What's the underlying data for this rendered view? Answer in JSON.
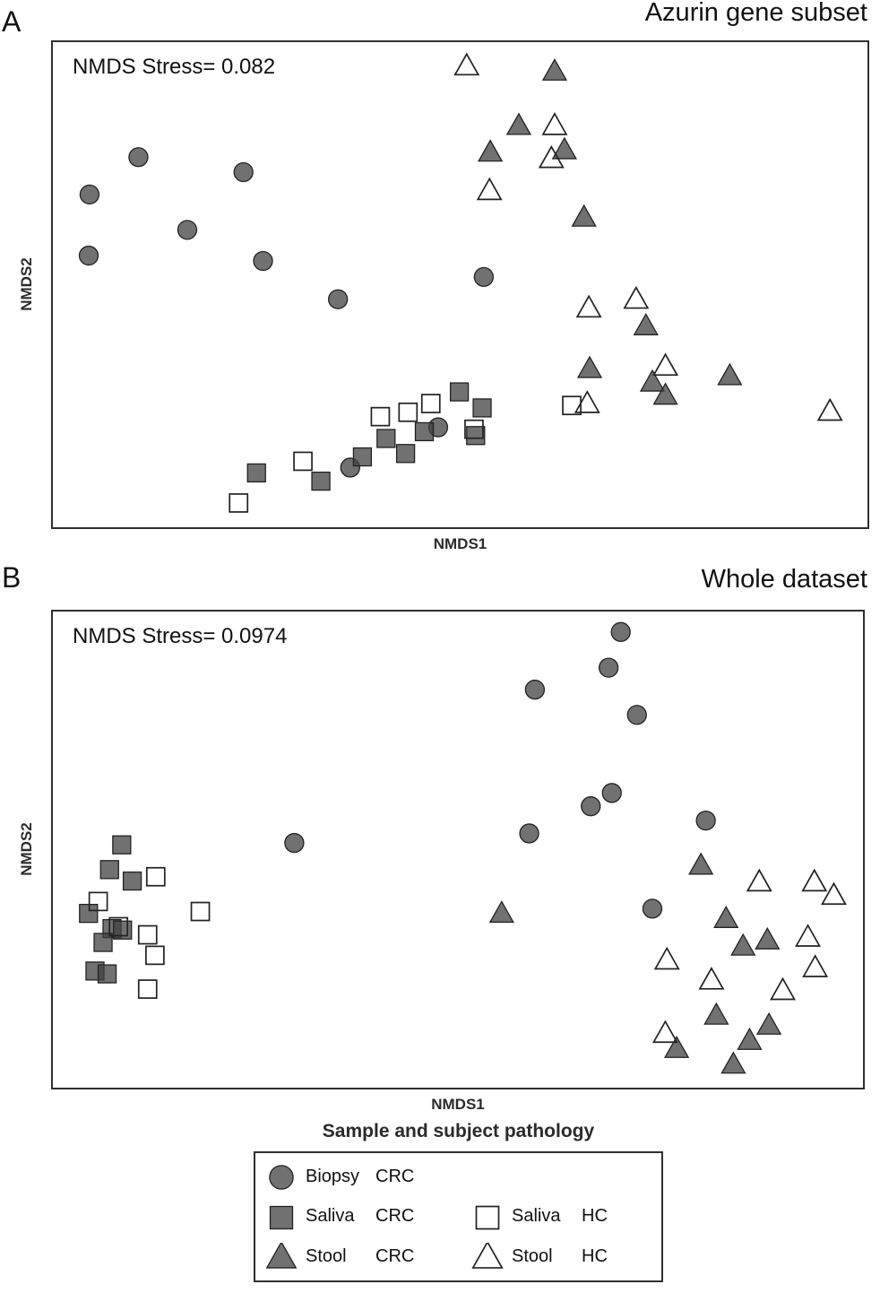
{
  "colors": {
    "filled_fill": "#414141",
    "filled_opacity": 0.75,
    "filled_stroke": "#222222",
    "open_fill": "none",
    "open_stroke": "#222222",
    "box_border": "#2f2f2f"
  },
  "chart_data": [
    {
      "type": "scatter",
      "panel_letter": "A",
      "title": "Azurin gene subset",
      "stress_label": "NMDS Stress= 0.082",
      "xlabel": "NMDS1",
      "ylabel": "NMDS2",
      "axis_ticks": "none",
      "coords": "normalized [x,y] fractions of plot box, origin top-left",
      "series": [
        {
          "name": "Biopsy CRC",
          "marker": "circle",
          "variant": "filled",
          "points": [
            [
              0.045,
              0.314
            ],
            [
              0.105,
              0.237
            ],
            [
              0.044,
              0.44
            ],
            [
              0.165,
              0.387
            ],
            [
              0.234,
              0.268
            ],
            [
              0.258,
              0.451
            ],
            [
              0.35,
              0.53
            ],
            [
              0.529,
              0.484
            ],
            [
              0.365,
              0.877
            ],
            [
              0.473,
              0.794
            ]
          ]
        },
        {
          "name": "Saliva CRC",
          "marker": "square",
          "variant": "filled",
          "points": [
            [
              0.25,
              0.888
            ],
            [
              0.329,
              0.905
            ],
            [
              0.38,
              0.855
            ],
            [
              0.409,
              0.817
            ],
            [
              0.433,
              0.848
            ],
            [
              0.456,
              0.803
            ],
            [
              0.499,
              0.721
            ],
            [
              0.527,
              0.754
            ],
            [
              0.519,
              0.811
            ]
          ]
        },
        {
          "name": "Stool CRC",
          "marker": "triangle",
          "variant": "filled",
          "points": [
            [
              0.616,
              0.062
            ],
            [
              0.572,
              0.174
            ],
            [
              0.537,
              0.229
            ],
            [
              0.628,
              0.224
            ],
            [
              0.652,
              0.363
            ],
            [
              0.728,
              0.587
            ],
            [
              0.659,
              0.675
            ],
            [
              0.736,
              0.703
            ],
            [
              0.752,
              0.73
            ],
            [
              0.831,
              0.69
            ]
          ]
        },
        {
          "name": "Saliva HC",
          "marker": "square",
          "variant": "open",
          "points": [
            [
              0.228,
              0.95
            ],
            [
              0.307,
              0.864
            ],
            [
              0.402,
              0.772
            ],
            [
              0.436,
              0.763
            ],
            [
              0.464,
              0.745
            ],
            [
              0.517,
              0.798
            ],
            [
              0.637,
              0.749
            ]
          ]
        },
        {
          "name": "Stool HC",
          "marker": "triangle",
          "variant": "open",
          "points": [
            [
              0.508,
              0.051
            ],
            [
              0.616,
              0.174
            ],
            [
              0.612,
              0.242
            ],
            [
              0.536,
              0.308
            ],
            [
              0.658,
              0.55
            ],
            [
              0.716,
              0.532
            ],
            [
              0.752,
              0.67
            ],
            [
              0.656,
              0.747
            ],
            [
              0.954,
              0.763
            ]
          ]
        }
      ]
    },
    {
      "type": "scatter",
      "panel_letter": "B",
      "title": "Whole dataset",
      "stress_label": "NMDS Stress= 0.0974",
      "xlabel": "NMDS1",
      "ylabel": "NMDS2",
      "axis_ticks": "none",
      "coords": "normalized [x,y] fractions of plot box, origin top-left",
      "series": [
        {
          "name": "Biopsy CRC",
          "marker": "circle",
          "variant": "filled",
          "points": [
            [
              0.701,
              0.043
            ],
            [
              0.686,
              0.118
            ],
            [
              0.595,
              0.164
            ],
            [
              0.721,
              0.217
            ],
            [
              0.69,
              0.381
            ],
            [
              0.664,
              0.409
            ],
            [
              0.588,
              0.466
            ],
            [
              0.806,
              0.439
            ],
            [
              0.298,
              0.486
            ],
            [
              0.74,
              0.624
            ]
          ]
        },
        {
          "name": "Saliva CRC",
          "marker": "square",
          "variant": "filled",
          "points": [
            [
              0.085,
              0.49
            ],
            [
              0.07,
              0.542
            ],
            [
              0.098,
              0.566
            ],
            [
              0.044,
              0.634
            ],
            [
              0.073,
              0.666
            ],
            [
              0.086,
              0.669
            ],
            [
              0.062,
              0.695
            ],
            [
              0.052,
              0.755
            ],
            [
              0.067,
              0.761
            ]
          ]
        },
        {
          "name": "Stool CRC",
          "marker": "triangle",
          "variant": "filled",
          "points": [
            [
              0.8,
              0.535
            ],
            [
              0.554,
              0.636
            ],
            [
              0.831,
              0.647
            ],
            [
              0.852,
              0.705
            ],
            [
              0.882,
              0.692
            ],
            [
              0.819,
              0.85
            ],
            [
              0.884,
              0.871
            ],
            [
              0.86,
              0.903
            ],
            [
              0.77,
              0.92
            ],
            [
              0.84,
              0.953
            ]
          ]
        },
        {
          "name": "Saliva HC",
          "marker": "square",
          "variant": "open",
          "points": [
            [
              0.127,
              0.557
            ],
            [
              0.056,
              0.609
            ],
            [
              0.182,
              0.63
            ],
            [
              0.081,
              0.662
            ],
            [
              0.117,
              0.679
            ],
            [
              0.126,
              0.722
            ],
            [
              0.117,
              0.793
            ]
          ]
        },
        {
          "name": "Stool HC",
          "marker": "triangle",
          "variant": "open",
          "points": [
            [
              0.872,
              0.57
            ],
            [
              0.94,
              0.57
            ],
            [
              0.964,
              0.598
            ],
            [
              0.932,
              0.686
            ],
            [
              0.758,
              0.734
            ],
            [
              0.813,
              0.776
            ],
            [
              0.941,
              0.75
            ],
            [
              0.901,
              0.798
            ],
            [
              0.756,
              0.888
            ]
          ]
        }
      ]
    }
  ],
  "legend": {
    "title": "Sample and subject pathology",
    "items": [
      {
        "sample": "Biopsy",
        "pathology": "CRC",
        "marker": "circle",
        "variant": "filled"
      },
      {
        "sample": "Saliva",
        "pathology": "CRC",
        "marker": "square",
        "variant": "filled"
      },
      {
        "sample": "Stool",
        "pathology": "CRC",
        "marker": "triangle",
        "variant": "filled"
      },
      {
        "sample": "Saliva",
        "pathology": "HC",
        "marker": "square",
        "variant": "open"
      },
      {
        "sample": "Stool",
        "pathology": "HC",
        "marker": "triangle",
        "variant": "open"
      }
    ]
  }
}
